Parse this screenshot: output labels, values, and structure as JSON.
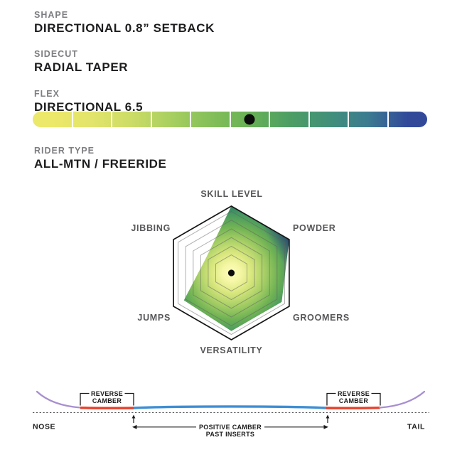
{
  "specs": [
    {
      "label": "SHAPE",
      "value": "DIRECTIONAL 0.8” SETBACK"
    },
    {
      "label": "SIDECUT",
      "value": "RADIAL TAPER"
    },
    {
      "label": "FLEX",
      "value": "DIRECTIONAL 6.5"
    },
    {
      "label": "RIDER TYPE",
      "value": "ALL-MTN / FREERIDE"
    }
  ],
  "chart_data": [
    {
      "type": "radar",
      "title": "",
      "axes": [
        "SKILL LEVEL",
        "POWDER",
        "GROOMERS",
        "VERSATILITY",
        "JUMPS",
        "JIBBING"
      ],
      "values": [
        1.0,
        1.0,
        0.87,
        0.87,
        0.82,
        0.44
      ],
      "value_max": 1.0,
      "rings": [
        1.0,
        0.92,
        0.79,
        0.66,
        0.53,
        0.4,
        0.27
      ],
      "center_dot": true,
      "legend": "none",
      "fill_style": "radial gradient, pale yellow center to green edges, navy at POWDER corner"
    },
    {
      "type": "gauge",
      "title": "FLEX",
      "value": 6.5,
      "scale_min": 0,
      "scale_max": 10,
      "segments": 10,
      "marker_position": 0.55,
      "gradient": [
        "#ece869",
        "#e2e46b",
        "#ccdc66",
        "#a8cf60",
        "#84bf59",
        "#68b156",
        "#4d9e64",
        "#41907a",
        "#3c7b90",
        "#32499a"
      ]
    },
    {
      "type": "profile",
      "title": "camber profile",
      "zones": [
        {
          "name": "nose tip rocker",
          "color": "#a78fd0"
        },
        {
          "name": "reverse camber (nose)",
          "color": "#e8402b"
        },
        {
          "name": "positive camber past inserts",
          "color": "#3e8ed3"
        },
        {
          "name": "reverse camber (tail)",
          "color": "#e8402b"
        },
        {
          "name": "tail tip rocker",
          "color": "#a78fd0"
        }
      ]
    }
  ],
  "camber": {
    "nose_label": "NOSE",
    "tail_label": "TAIL",
    "reverse_left": {
      "line1": "REVERSE",
      "line2": "CAMBER"
    },
    "reverse_right": {
      "line1": "REVERSE",
      "line2": "CAMBER"
    },
    "positive": {
      "line1": "POSITIVE CAMBER",
      "line2": "PAST INSERTS"
    },
    "colors": {
      "tip_purple": "#a78fd0",
      "reverse_red": "#e8402b",
      "positive_blue": "#3e8ed3",
      "baseline_gray": "#57585a",
      "annotation_black": "#1b1b1b"
    }
  },
  "colors": {
    "label_gray": "#7d7e82",
    "text_black": "#1d1d1f",
    "radar_label_gray": "#57575a",
    "marker_dot": "#0c0c0c"
  }
}
